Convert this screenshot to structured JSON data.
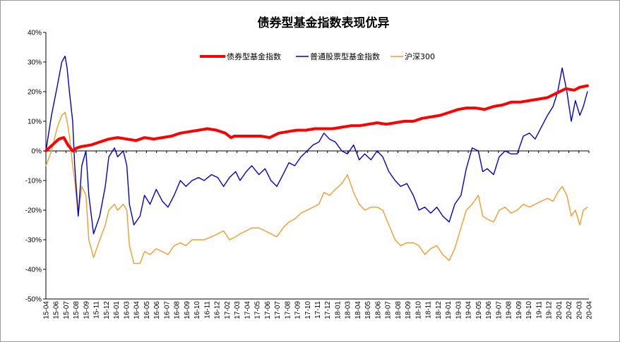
{
  "chart_data": {
    "type": "line",
    "title": "债券型基金指数表现优异",
    "xlabel": "",
    "ylabel": "",
    "ylim": [
      -0.5,
      0.4
    ],
    "yticks": [
      "-50%",
      "-40%",
      "-30%",
      "-20%",
      "-10%",
      "0%",
      "10%",
      "20%",
      "30%",
      "40%"
    ],
    "ytick_values": [
      -0.5,
      -0.4,
      -0.3,
      -0.2,
      -0.1,
      0.0,
      0.1,
      0.2,
      0.3,
      0.4
    ],
    "xticks": [
      "15-04",
      "15-06",
      "15-07",
      "15-08",
      "15-09",
      "15-11",
      "15-12",
      "16-01",
      "16-03",
      "16-04",
      "16-05",
      "16-06",
      "16-07",
      "16-08",
      "16-09",
      "16-10",
      "16-11",
      "16-12",
      "17-02",
      "17-03",
      "17-04",
      "17-05",
      "17-06",
      "17-07",
      "17-08",
      "17-09",
      "17-10",
      "17-11",
      "17-12",
      "18-01",
      "18-03",
      "18-04",
      "18-05",
      "18-06",
      "18-07",
      "18-08",
      "18-09",
      "18-10",
      "18-11",
      "18-12",
      "19-01",
      "19-03",
      "19-04",
      "19-05",
      "19-06",
      "19-07",
      "19-08",
      "19-09",
      "19-10",
      "19-11",
      "19-12",
      "20-01",
      "20-02",
      "20-03",
      "20-04"
    ],
    "grid": false,
    "legend_position": "top-center",
    "series": [
      {
        "name": "债券型基金指数",
        "color": "#ff0000",
        "x": [
          "2015-04-01",
          "2015-05-15",
          "2015-06-01",
          "2015-06-15",
          "2015-07-01",
          "2015-07-15",
          "2015-08-01",
          "2015-09-01",
          "2015-10-01",
          "2015-11-01",
          "2015-12-01",
          "2016-01-01",
          "2016-02-01",
          "2016-03-01",
          "2016-04-01",
          "2016-05-01",
          "2016-06-01",
          "2016-07-01",
          "2016-08-01",
          "2016-09-01",
          "2016-10-01",
          "2016-11-01",
          "2016-12-01",
          "2016-12-20",
          "2017-01-01",
          "2017-02-01",
          "2017-03-01",
          "2017-04-01",
          "2017-05-01",
          "2017-06-01",
          "2017-07-01",
          "2017-08-01",
          "2017-09-01",
          "2017-10-01",
          "2017-11-01",
          "2017-12-01",
          "2018-01-01",
          "2018-02-01",
          "2018-03-01",
          "2018-04-01",
          "2018-05-01",
          "2018-06-01",
          "2018-07-01",
          "2018-08-01",
          "2018-09-01",
          "2018-10-01",
          "2018-11-01",
          "2018-12-01",
          "2019-01-01",
          "2019-02-01",
          "2019-03-01",
          "2019-04-01",
          "2019-05-01",
          "2019-06-01",
          "2019-07-01",
          "2019-08-01",
          "2019-09-01",
          "2019-10-01",
          "2019-11-01",
          "2019-12-01",
          "2020-01-01",
          "2020-02-01",
          "2020-03-01",
          "2020-03-20",
          "2020-04-15"
        ],
        "values": [
          0.0,
          0.04,
          0.045,
          0.02,
          0.0,
          0.01,
          0.015,
          0.02,
          0.03,
          0.04,
          0.045,
          0.04,
          0.035,
          0.045,
          0.04,
          0.045,
          0.05,
          0.06,
          0.065,
          0.07,
          0.075,
          0.07,
          0.06,
          0.045,
          0.05,
          0.05,
          0.05,
          0.05,
          0.045,
          0.06,
          0.065,
          0.07,
          0.07,
          0.075,
          0.075,
          0.075,
          0.08,
          0.085,
          0.085,
          0.09,
          0.095,
          0.09,
          0.095,
          0.1,
          0.1,
          0.11,
          0.115,
          0.12,
          0.13,
          0.14,
          0.145,
          0.145,
          0.14,
          0.15,
          0.155,
          0.165,
          0.165,
          0.17,
          0.175,
          0.18,
          0.195,
          0.21,
          0.205,
          0.215,
          0.22
        ]
      },
      {
        "name": "普通股票型基金指数",
        "color": "#0000cc",
        "x": [
          "2015-04-01",
          "2015-04-20",
          "2015-05-10",
          "2015-05-25",
          "2015-06-05",
          "2015-06-12",
          "2015-06-20",
          "2015-07-01",
          "2015-07-08",
          "2015-07-20",
          "2015-08-01",
          "2015-08-15",
          "2015-08-25",
          "2015-09-10",
          "2015-10-01",
          "2015-10-20",
          "2015-11-01",
          "2015-11-20",
          "2015-12-01",
          "2015-12-20",
          "2016-01-01",
          "2016-01-10",
          "2016-01-25",
          "2016-02-15",
          "2016-03-01",
          "2016-03-20",
          "2016-04-10",
          "2016-05-01",
          "2016-05-20",
          "2016-06-10",
          "2016-07-01",
          "2016-07-20",
          "2016-08-10",
          "2016-09-01",
          "2016-09-20",
          "2016-10-15",
          "2016-11-05",
          "2016-11-25",
          "2016-12-15",
          "2017-01-05",
          "2017-01-20",
          "2017-02-10",
          "2017-03-01",
          "2017-03-25",
          "2017-04-15",
          "2017-05-05",
          "2017-05-25",
          "2017-06-15",
          "2017-07-05",
          "2017-07-25",
          "2017-08-15",
          "2017-09-05",
          "2017-09-25",
          "2017-10-15",
          "2017-11-01",
          "2017-11-20",
          "2017-12-10",
          "2018-01-01",
          "2018-01-20",
          "2018-02-10",
          "2018-03-01",
          "2018-03-20",
          "2018-04-10",
          "2018-05-01",
          "2018-05-20",
          "2018-06-10",
          "2018-07-01",
          "2018-07-20",
          "2018-08-10",
          "2018-09-01",
          "2018-09-20",
          "2018-10-10",
          "2018-10-30",
          "2018-11-20",
          "2018-12-10",
          "2019-01-01",
          "2019-01-20",
          "2019-02-10",
          "2019-02-28",
          "2019-03-20",
          "2019-04-10",
          "2019-04-25",
          "2019-05-10",
          "2019-06-01",
          "2019-06-20",
          "2019-07-10",
          "2019-07-30",
          "2019-08-20",
          "2019-09-10",
          "2019-10-01",
          "2019-10-20",
          "2019-11-10",
          "2019-12-01",
          "2019-12-20",
          "2020-01-05",
          "2020-01-20",
          "2020-02-05",
          "2020-02-20",
          "2020-03-05",
          "2020-03-20",
          "2020-04-01",
          "2020-04-15"
        ],
        "values": [
          0.0,
          0.12,
          0.22,
          0.3,
          0.32,
          0.28,
          0.2,
          0.1,
          -0.05,
          -0.22,
          -0.05,
          0.0,
          -0.15,
          -0.28,
          -0.22,
          -0.12,
          -0.02,
          0.01,
          -0.02,
          0.0,
          -0.05,
          -0.18,
          -0.25,
          -0.22,
          -0.15,
          -0.18,
          -0.13,
          -0.17,
          -0.19,
          -0.15,
          -0.1,
          -0.12,
          -0.1,
          -0.09,
          -0.1,
          -0.08,
          -0.09,
          -0.12,
          -0.09,
          -0.07,
          -0.1,
          -0.07,
          -0.05,
          -0.08,
          -0.06,
          -0.1,
          -0.12,
          -0.08,
          -0.04,
          -0.05,
          -0.02,
          0.0,
          0.02,
          0.03,
          0.06,
          0.04,
          0.03,
          0.0,
          -0.01,
          0.02,
          -0.03,
          -0.01,
          -0.03,
          0.0,
          -0.02,
          -0.07,
          -0.1,
          -0.12,
          -0.11,
          -0.15,
          -0.2,
          -0.19,
          -0.21,
          -0.19,
          -0.22,
          -0.24,
          -0.18,
          -0.15,
          -0.06,
          0.01,
          0.0,
          -0.07,
          -0.06,
          -0.08,
          -0.02,
          0.0,
          -0.01,
          -0.01,
          0.05,
          0.06,
          0.04,
          0.08,
          0.12,
          0.15,
          0.2,
          0.28,
          0.2,
          0.1,
          0.17,
          0.12,
          0.15,
          0.2
        ]
      },
      {
        "name": "沪深300",
        "color": "#f39c2b",
        "x": [
          "2015-04-01",
          "2015-04-20",
          "2015-05-10",
          "2015-05-25",
          "2015-06-05",
          "2015-06-12",
          "2015-06-20",
          "2015-07-01",
          "2015-07-08",
          "2015-07-20",
          "2015-08-01",
          "2015-08-15",
          "2015-08-25",
          "2015-09-10",
          "2015-10-01",
          "2015-10-20",
          "2015-11-01",
          "2015-11-20",
          "2015-12-01",
          "2015-12-20",
          "2016-01-01",
          "2016-01-10",
          "2016-01-25",
          "2016-02-15",
          "2016-03-01",
          "2016-03-20",
          "2016-04-10",
          "2016-05-01",
          "2016-05-20",
          "2016-06-10",
          "2016-07-01",
          "2016-07-20",
          "2016-08-10",
          "2016-09-01",
          "2016-09-20",
          "2016-10-15",
          "2016-11-05",
          "2016-11-25",
          "2016-12-15",
          "2017-01-05",
          "2017-01-20",
          "2017-02-10",
          "2017-03-01",
          "2017-03-25",
          "2017-04-15",
          "2017-05-05",
          "2017-05-25",
          "2017-06-15",
          "2017-07-05",
          "2017-07-25",
          "2017-08-15",
          "2017-09-05",
          "2017-09-25",
          "2017-10-15",
          "2017-11-01",
          "2017-11-20",
          "2017-12-10",
          "2018-01-01",
          "2018-01-20",
          "2018-02-10",
          "2018-03-01",
          "2018-03-20",
          "2018-04-10",
          "2018-05-01",
          "2018-05-20",
          "2018-06-10",
          "2018-07-01",
          "2018-07-20",
          "2018-08-10",
          "2018-09-01",
          "2018-09-20",
          "2018-10-10",
          "2018-10-30",
          "2018-11-20",
          "2018-12-10",
          "2019-01-01",
          "2019-01-20",
          "2019-02-10",
          "2019-02-28",
          "2019-03-20",
          "2019-04-10",
          "2019-04-25",
          "2019-05-10",
          "2019-06-01",
          "2019-06-20",
          "2019-07-10",
          "2019-07-30",
          "2019-08-20",
          "2019-09-10",
          "2019-10-01",
          "2019-10-20",
          "2019-11-10",
          "2019-12-01",
          "2019-12-20",
          "2020-01-05",
          "2020-01-20",
          "2020-02-05",
          "2020-02-20",
          "2020-03-05",
          "2020-03-20",
          "2020-04-01",
          "2020-04-15"
        ],
        "values": [
          -0.05,
          0.0,
          0.08,
          0.12,
          0.13,
          0.1,
          0.05,
          -0.05,
          -0.1,
          -0.22,
          -0.12,
          -0.15,
          -0.3,
          -0.36,
          -0.3,
          -0.25,
          -0.2,
          -0.18,
          -0.2,
          -0.18,
          -0.2,
          -0.32,
          -0.38,
          -0.38,
          -0.34,
          -0.35,
          -0.33,
          -0.34,
          -0.35,
          -0.32,
          -0.31,
          -0.32,
          -0.3,
          -0.3,
          -0.3,
          -0.29,
          -0.28,
          -0.27,
          -0.3,
          -0.29,
          -0.28,
          -0.27,
          -0.26,
          -0.26,
          -0.27,
          -0.28,
          -0.29,
          -0.26,
          -0.24,
          -0.23,
          -0.21,
          -0.2,
          -0.19,
          -0.18,
          -0.14,
          -0.15,
          -0.13,
          -0.11,
          -0.08,
          -0.14,
          -0.18,
          -0.2,
          -0.19,
          -0.19,
          -0.2,
          -0.25,
          -0.3,
          -0.32,
          -0.31,
          -0.31,
          -0.32,
          -0.35,
          -0.33,
          -0.32,
          -0.35,
          -0.37,
          -0.33,
          -0.26,
          -0.2,
          -0.18,
          -0.15,
          -0.22,
          -0.23,
          -0.24,
          -0.2,
          -0.19,
          -0.21,
          -0.2,
          -0.18,
          -0.19,
          -0.18,
          -0.17,
          -0.16,
          -0.17,
          -0.14,
          -0.12,
          -0.15,
          -0.22,
          -0.2,
          -0.25,
          -0.2,
          -0.19
        ]
      }
    ]
  }
}
